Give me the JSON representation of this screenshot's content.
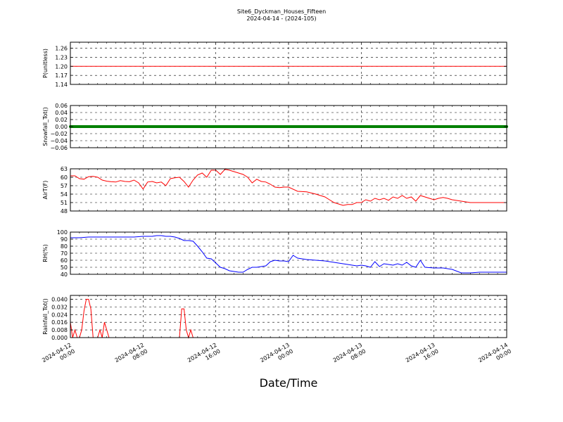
{
  "title": {
    "line1": "Site6_Dyckman_Houses_Fifteen",
    "line2": "2024-04-14 - (2024-105)"
  },
  "x_axis": {
    "label": "Date/Time",
    "tick_labels": [
      [
        "2024-04-12",
        "00:00"
      ],
      [
        "2024-04-12",
        "08:00"
      ],
      [
        "2024-04-12",
        "16:00"
      ],
      [
        "2024-04-13",
        "00:00"
      ],
      [
        "2024-04-13",
        "08:00"
      ],
      [
        "2024-04-13",
        "16:00"
      ],
      [
        "2024-04-14",
        "00:00"
      ]
    ]
  },
  "chart_data": [
    {
      "type": "line",
      "ylabel": "P(unitless)",
      "ylim": [
        1.14,
        1.28
      ],
      "yticks": [
        "1.14",
        "1.17",
        "1.20",
        "1.23",
        "1.26"
      ],
      "ytick_values": [
        1.14,
        1.17,
        1.2,
        1.23,
        1.26
      ],
      "color": "#ff0000",
      "grid": true,
      "xlim_hours": [
        0,
        48
      ],
      "series": [
        {
          "x": [
            0,
            48
          ],
          "y": [
            1.2,
            1.2
          ]
        }
      ]
    },
    {
      "type": "line",
      "ylabel": "Snowfall_Tot()",
      "ylim": [
        -0.06,
        0.06
      ],
      "yticks": [
        "−0.06",
        "−0.04",
        "−0.02",
        "0.00",
        "0.02",
        "0.04",
        "0.06"
      ],
      "ytick_values": [
        -0.06,
        -0.04,
        -0.02,
        0.0,
        0.02,
        0.04,
        0.06
      ],
      "color": "#008000",
      "marker": true,
      "grid": true,
      "xlim_hours": [
        0,
        48
      ],
      "series": [
        {
          "x": [
            0,
            48
          ],
          "y": [
            0,
            0
          ]
        }
      ]
    },
    {
      "type": "line",
      "ylabel": "AirT(F)",
      "ylim": [
        48,
        63
      ],
      "yticks": [
        "48",
        "51",
        "54",
        "57",
        "60",
        "63"
      ],
      "ytick_values": [
        48,
        51,
        54,
        57,
        60,
        63
      ],
      "color": "#ff0000",
      "grid": true,
      "xlim_hours": [
        0,
        48
      ],
      "series": [
        {
          "x": [
            0,
            0.5,
            1,
            1.5,
            2,
            2.5,
            3,
            3.5,
            4,
            4.5,
            5,
            5.5,
            6,
            6.5,
            7,
            7.5,
            8,
            8.5,
            9,
            9.5,
            10,
            10.5,
            11,
            11.5,
            12,
            12.5,
            13,
            13.5,
            14,
            14.5,
            15,
            15.5,
            16,
            16.5,
            17,
            17.5,
            18,
            18.5,
            19,
            19.5,
            20,
            20.5,
            21,
            21.5,
            22,
            22.5,
            23,
            23.5,
            24,
            25,
            26,
            27,
            28,
            28.5,
            29,
            29.5,
            30,
            30.5,
            31,
            31.5,
            32,
            32.5,
            33,
            33.5,
            34,
            34.5,
            35,
            35.5,
            36,
            36.5,
            37,
            37.5,
            38,
            38.5,
            39,
            39.5,
            40,
            40.5,
            41,
            41.5,
            42,
            43,
            44,
            45,
            46,
            47,
            48
          ],
          "y": [
            60.5,
            60.5,
            59.5,
            59.3,
            60.2,
            60.3,
            60,
            59,
            58.6,
            58.4,
            58.3,
            58.8,
            58.5,
            58.4,
            59,
            58,
            55.8,
            58.3,
            58.5,
            58,
            58.3,
            57,
            59.5,
            59.8,
            60,
            58.5,
            56.5,
            59,
            60.8,
            61.5,
            60,
            62.5,
            62.5,
            61,
            62.8,
            62.5,
            62,
            61.5,
            61,
            60,
            58,
            59.3,
            58.5,
            58.3,
            57.5,
            56.5,
            56.3,
            56.5,
            56.5,
            55,
            54.8,
            54,
            53,
            52,
            51,
            50.5,
            50,
            50.3,
            50.3,
            51,
            51,
            52,
            51.5,
            52.5,
            52,
            52.5,
            51.8,
            53,
            52.5,
            53.5,
            52.5,
            53,
            51.5,
            53.5,
            53,
            52.5,
            52,
            52.5,
            52.8,
            52.5,
            52,
            51.5,
            51,
            51,
            51,
            51,
            51
          ]
        }
      ]
    },
    {
      "type": "line",
      "ylabel": "RH(%)",
      "ylim": [
        40,
        100
      ],
      "yticks": [
        "40",
        "50",
        "60",
        "70",
        "80",
        "90",
        "100"
      ],
      "ytick_values": [
        40,
        50,
        60,
        70,
        80,
        90,
        100
      ],
      "color": "#0000ff",
      "grid": true,
      "xlim_hours": [
        0,
        48
      ],
      "series": [
        {
          "x": [
            0,
            1,
            2,
            3,
            4,
            5,
            6,
            7,
            8,
            8.5,
            9,
            9.5,
            10,
            10.5,
            11,
            11.5,
            12,
            12.5,
            13,
            13.5,
            14,
            14.5,
            15,
            15.5,
            16,
            16.5,
            17,
            17.5,
            18,
            18.5,
            19,
            19.5,
            20,
            20.5,
            21,
            21.5,
            22,
            22.5,
            23,
            23.5,
            24,
            24.5,
            25,
            26,
            27,
            28,
            29,
            30,
            30.5,
            31,
            31.5,
            32,
            32.5,
            33,
            33.5,
            34,
            34.5,
            35,
            35.5,
            36,
            36.5,
            37,
            37.5,
            38,
            38.5,
            39,
            40,
            41,
            42,
            43,
            44,
            45,
            46,
            47,
            48
          ],
          "y": [
            92,
            92,
            93,
            93,
            93,
            93,
            93,
            93,
            94,
            94,
            94,
            95,
            95,
            94,
            94,
            93,
            91,
            88,
            88,
            87,
            80,
            72,
            63,
            62,
            56,
            50,
            48,
            45,
            44,
            43,
            43,
            47,
            50,
            50,
            51,
            52,
            58,
            60,
            59,
            59,
            58,
            67,
            63,
            61,
            60,
            59,
            57,
            55,
            54,
            53,
            52,
            53,
            52,
            50,
            58,
            51,
            55,
            54,
            53,
            55,
            53,
            57,
            52,
            50,
            60,
            50,
            49,
            49,
            47,
            42,
            42,
            43,
            43,
            43,
            43
          ]
        }
      ]
    },
    {
      "type": "line",
      "ylabel": "Rainfall_Tot()",
      "ylim": [
        0,
        0.044
      ],
      "yticks": [
        "0.000",
        "0.008",
        "0.016",
        "0.024",
        "0.032",
        "0.040"
      ],
      "ytick_values": [
        0,
        0.008,
        0.016,
        0.024,
        0.032,
        0.04
      ],
      "color": "#ff0000",
      "grid": true,
      "xlim_hours": [
        0,
        48
      ],
      "series": [
        {
          "x": [
            0,
            0.25,
            0.5,
            0.75,
            1,
            1.25,
            1.5,
            1.75,
            2,
            2.25,
            2.5,
            2.75,
            3,
            3.25,
            3.5,
            3.75,
            4,
            4.25,
            4.5,
            4.75,
            5,
            5.25,
            5.5,
            12,
            12.25,
            12.5,
            12.75,
            13,
            13.25,
            13.5,
            13.75,
            14,
            48
          ],
          "y": [
            0.016,
            0,
            0.008,
            0,
            0,
            0.008,
            0.028,
            0.04,
            0.04,
            0.03,
            0,
            0,
            0,
            0.008,
            0,
            0.016,
            0.008,
            0,
            0,
            0,
            0,
            0,
            0,
            0,
            0.03,
            0.03,
            0.008,
            0,
            0.008,
            0,
            0,
            0,
            0
          ]
        }
      ]
    }
  ]
}
